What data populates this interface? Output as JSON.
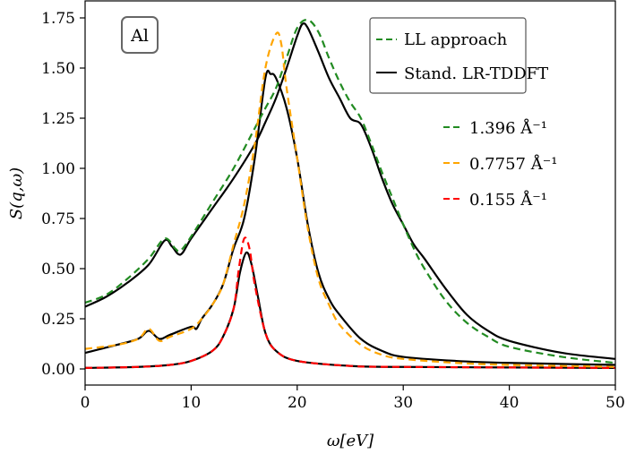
{
  "chart_data": {
    "type": "line",
    "title": "",
    "xlabel": "ω[eV]",
    "ylabel": "S(q,ω)",
    "xlim": [
      0,
      50
    ],
    "ylim": [
      -0.1,
      1.78
    ],
    "xticks": [
      "0",
      "10",
      "20",
      "30",
      "40",
      "50"
    ],
    "yticks": [
      "0.00",
      "0.25",
      "0.50",
      "0.75",
      "1.00",
      "1.25",
      "1.50",
      "1.75"
    ],
    "annotation": "Al",
    "style_legend": {
      "placement": "top-right",
      "entries": [
        "LL approach",
        "Stand. LR-TDDFT"
      ]
    },
    "q_legend": {
      "placement": "right",
      "entries": [
        "1.396 Å⁻¹",
        "0.7757 Å⁻¹",
        "0.155 Å⁻¹"
      ]
    },
    "series": [
      {
        "name": "LL approach 1.396 Å⁻¹",
        "color": "#228b22",
        "dash": true,
        "points": [
          [
            0,
            0.33
          ],
          [
            2,
            0.37
          ],
          [
            4,
            0.45
          ],
          [
            6,
            0.55
          ],
          [
            7.5,
            0.65
          ],
          [
            8.5,
            0.6
          ],
          [
            9,
            0.59
          ],
          [
            10,
            0.66
          ],
          [
            12,
            0.83
          ],
          [
            14,
            1.0
          ],
          [
            16,
            1.2
          ],
          [
            17,
            1.3
          ],
          [
            18,
            1.4
          ],
          [
            19,
            1.55
          ],
          [
            20,
            1.7
          ],
          [
            21,
            1.74
          ],
          [
            22,
            1.68
          ],
          [
            23,
            1.55
          ],
          [
            24,
            1.43
          ],
          [
            25,
            1.33
          ],
          [
            26,
            1.25
          ],
          [
            27,
            1.12
          ],
          [
            28,
            0.98
          ],
          [
            29,
            0.85
          ],
          [
            30,
            0.72
          ],
          [
            31,
            0.6
          ],
          [
            32,
            0.5
          ],
          [
            34,
            0.34
          ],
          [
            36,
            0.23
          ],
          [
            38,
            0.16
          ],
          [
            40,
            0.11
          ],
          [
            45,
            0.06
          ],
          [
            50,
            0.03
          ]
        ]
      },
      {
        "name": "Stand. LR-TDDFT 1.396 Å⁻¹",
        "color": "#000000",
        "dash": false,
        "points": [
          [
            0,
            0.31
          ],
          [
            2,
            0.36
          ],
          [
            4,
            0.43
          ],
          [
            6,
            0.52
          ],
          [
            7.5,
            0.64
          ],
          [
            8.2,
            0.61
          ],
          [
            9,
            0.57
          ],
          [
            10,
            0.65
          ],
          [
            12,
            0.8
          ],
          [
            14,
            0.95
          ],
          [
            16,
            1.12
          ],
          [
            17,
            1.23
          ],
          [
            18,
            1.35
          ],
          [
            19,
            1.5
          ],
          [
            20,
            1.66
          ],
          [
            20.5,
            1.72
          ],
          [
            21,
            1.7
          ],
          [
            22,
            1.58
          ],
          [
            23,
            1.45
          ],
          [
            24,
            1.35
          ],
          [
            25,
            1.25
          ],
          [
            26,
            1.22
          ],
          [
            27,
            1.1
          ],
          [
            28,
            0.95
          ],
          [
            29,
            0.82
          ],
          [
            30,
            0.72
          ],
          [
            31,
            0.62
          ],
          [
            32,
            0.55
          ],
          [
            34,
            0.4
          ],
          [
            36,
            0.27
          ],
          [
            38,
            0.19
          ],
          [
            40,
            0.14
          ],
          [
            45,
            0.08
          ],
          [
            50,
            0.05
          ]
        ]
      },
      {
        "name": "LL approach 0.7757 Å⁻¹",
        "color": "#ffa500",
        "dash": true,
        "points": [
          [
            0,
            0.1
          ],
          [
            3,
            0.12
          ],
          [
            5,
            0.15
          ],
          [
            6,
            0.2
          ],
          [
            7,
            0.14
          ],
          [
            8,
            0.16
          ],
          [
            10,
            0.2
          ],
          [
            11,
            0.25
          ],
          [
            12,
            0.32
          ],
          [
            13,
            0.42
          ],
          [
            14,
            0.62
          ],
          [
            15,
            0.82
          ],
          [
            16,
            1.12
          ],
          [
            17,
            1.5
          ],
          [
            18,
            1.67
          ],
          [
            18.5,
            1.62
          ],
          [
            19,
            1.4
          ],
          [
            20,
            1.05
          ],
          [
            21,
            0.7
          ],
          [
            22,
            0.45
          ],
          [
            23,
            0.32
          ],
          [
            24,
            0.22
          ],
          [
            26,
            0.12
          ],
          [
            28,
            0.07
          ],
          [
            30,
            0.05
          ],
          [
            35,
            0.03
          ],
          [
            40,
            0.02
          ],
          [
            50,
            0.01
          ]
        ]
      },
      {
        "name": "Stand. LR-TDDFT 0.7757 Å⁻¹",
        "color": "#000000",
        "dash": false,
        "points": [
          [
            0,
            0.08
          ],
          [
            3,
            0.12
          ],
          [
            5,
            0.15
          ],
          [
            6,
            0.19
          ],
          [
            7,
            0.15
          ],
          [
            8,
            0.17
          ],
          [
            10,
            0.21
          ],
          [
            10.5,
            0.2
          ],
          [
            11,
            0.25
          ],
          [
            12,
            0.32
          ],
          [
            13,
            0.42
          ],
          [
            14,
            0.6
          ],
          [
            15,
            0.75
          ],
          [
            16,
            1.05
          ],
          [
            17,
            1.45
          ],
          [
            17.5,
            1.47
          ],
          [
            18,
            1.45
          ],
          [
            19,
            1.3
          ],
          [
            20,
            1.05
          ],
          [
            21,
            0.72
          ],
          [
            22,
            0.48
          ],
          [
            23,
            0.35
          ],
          [
            24,
            0.27
          ],
          [
            26,
            0.15
          ],
          [
            28,
            0.09
          ],
          [
            30,
            0.06
          ],
          [
            35,
            0.04
          ],
          [
            40,
            0.03
          ],
          [
            50,
            0.02
          ]
        ]
      },
      {
        "name": "LL approach 0.155 Å⁻¹",
        "color": "#ff0000",
        "dash": true,
        "points": [
          [
            0,
            0.005
          ],
          [
            5,
            0.01
          ],
          [
            8,
            0.02
          ],
          [
            10,
            0.04
          ],
          [
            12,
            0.09
          ],
          [
            13,
            0.16
          ],
          [
            14,
            0.3
          ],
          [
            14.5,
            0.5
          ],
          [
            15,
            0.65
          ],
          [
            15.5,
            0.6
          ],
          [
            16,
            0.42
          ],
          [
            17,
            0.18
          ],
          [
            18,
            0.09
          ],
          [
            20,
            0.04
          ],
          [
            25,
            0.015
          ],
          [
            30,
            0.01
          ],
          [
            50,
            0.005
          ]
        ]
      },
      {
        "name": "Stand. LR-TDDFT 0.155 Å⁻¹",
        "color": "#000000",
        "dash": false,
        "points": [
          [
            0,
            0.005
          ],
          [
            5,
            0.01
          ],
          [
            8,
            0.02
          ],
          [
            10,
            0.04
          ],
          [
            12,
            0.09
          ],
          [
            13,
            0.16
          ],
          [
            14,
            0.3
          ],
          [
            14.6,
            0.48
          ],
          [
            15.2,
            0.58
          ],
          [
            15.7,
            0.52
          ],
          [
            16.3,
            0.36
          ],
          [
            17,
            0.18
          ],
          [
            18,
            0.09
          ],
          [
            20,
            0.04
          ],
          [
            25,
            0.015
          ],
          [
            30,
            0.01
          ],
          [
            50,
            0.005
          ]
        ]
      }
    ]
  }
}
